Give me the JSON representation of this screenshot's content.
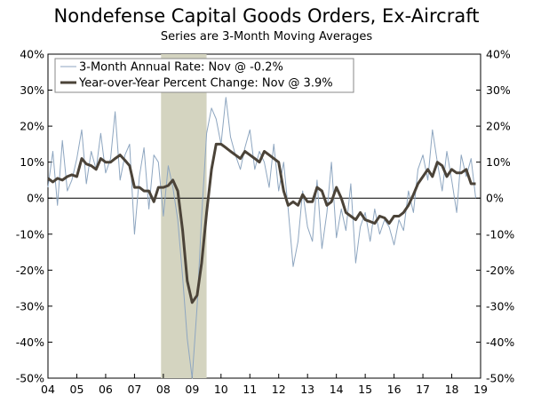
{
  "chart_data": {
    "type": "line",
    "title": "Nondefense Capital Goods Orders, Ex-Aircraft",
    "subtitle": "Series are 3-Month Moving Averages",
    "x_ticks": [
      "04",
      "05",
      "06",
      "07",
      "08",
      "09",
      "10",
      "11",
      "12",
      "13",
      "14",
      "15",
      "16",
      "17",
      "18",
      "19"
    ],
    "xlim": [
      2004.0,
      2019.0
    ],
    "ylim": [
      -50,
      40
    ],
    "y_ticks": [
      "-50%",
      "-40%",
      "-30%",
      "-20%",
      "-10%",
      "0%",
      "10%",
      "20%",
      "30%",
      "40%"
    ],
    "y_tick_values": [
      -50,
      -40,
      -30,
      -20,
      -10,
      0,
      10,
      20,
      30,
      40
    ],
    "right_axis": true,
    "zero_line": true,
    "recession_shading": [
      2007.92,
      2009.5
    ],
    "legend_placement": "top-left",
    "series": [
      {
        "name": "3-Month Annual Rate: Nov @ -0.2%",
        "style": "thin",
        "color": "#8ea6c0",
        "x": [
          2004.0,
          2004.17,
          2004.33,
          2004.5,
          2004.67,
          2004.83,
          2005.0,
          2005.17,
          2005.33,
          2005.5,
          2005.67,
          2005.83,
          2006.0,
          2006.17,
          2006.33,
          2006.5,
          2006.67,
          2006.83,
          2007.0,
          2007.17,
          2007.33,
          2007.5,
          2007.67,
          2007.83,
          2008.0,
          2008.17,
          2008.33,
          2008.5,
          2008.67,
          2008.83,
          2009.0,
          2009.17,
          2009.33,
          2009.5,
          2009.67,
          2009.83,
          2010.0,
          2010.17,
          2010.33,
          2010.5,
          2010.67,
          2010.83,
          2011.0,
          2011.17,
          2011.33,
          2011.5,
          2011.67,
          2011.83,
          2012.0,
          2012.17,
          2012.33,
          2012.5,
          2012.67,
          2012.83,
          2013.0,
          2013.17,
          2013.33,
          2013.5,
          2013.67,
          2013.83,
          2014.0,
          2014.17,
          2014.33,
          2014.5,
          2014.67,
          2014.83,
          2015.0,
          2015.17,
          2015.33,
          2015.5,
          2015.67,
          2015.83,
          2016.0,
          2016.17,
          2016.33,
          2016.5,
          2016.67,
          2016.83,
          2017.0,
          2017.17,
          2017.33,
          2017.5,
          2017.67,
          2017.83,
          2018.0,
          2018.17,
          2018.33,
          2018.5,
          2018.67,
          2018.83
        ],
        "values": [
          3,
          13,
          -2,
          16,
          2,
          5,
          11,
          19,
          4,
          13,
          8,
          18,
          7,
          11,
          24,
          5,
          12,
          15,
          -10,
          6,
          14,
          -3,
          12,
          10,
          -5,
          9,
          3,
          -6,
          -22,
          -39,
          -50,
          -30,
          -5,
          18,
          25,
          22,
          15,
          28,
          17,
          12,
          8,
          14,
          19,
          8,
          13,
          10,
          3,
          15,
          2,
          10,
          -3,
          -19,
          -12,
          2,
          -8,
          -12,
          5,
          -14,
          -4,
          10,
          -11,
          -3,
          -9,
          4,
          -18,
          -8,
          -4,
          -12,
          -3,
          -10,
          -6,
          -8,
          -13,
          -6,
          -9,
          2,
          -4,
          8,
          12,
          5,
          19,
          10,
          2,
          13,
          5,
          -4,
          12,
          6,
          11,
          0
        ]
      },
      {
        "name": "Year-over-Year Percent Change: Nov @ 3.9%",
        "style": "thick",
        "color": "#4b4338",
        "x": [
          2004.0,
          2004.17,
          2004.33,
          2004.5,
          2004.67,
          2004.83,
          2005.0,
          2005.17,
          2005.33,
          2005.5,
          2005.67,
          2005.83,
          2006.0,
          2006.17,
          2006.33,
          2006.5,
          2006.67,
          2006.83,
          2007.0,
          2007.17,
          2007.33,
          2007.5,
          2007.67,
          2007.83,
          2008.0,
          2008.17,
          2008.33,
          2008.5,
          2008.67,
          2008.83,
          2009.0,
          2009.17,
          2009.33,
          2009.5,
          2009.67,
          2009.83,
          2010.0,
          2010.17,
          2010.33,
          2010.5,
          2010.67,
          2010.83,
          2011.0,
          2011.17,
          2011.33,
          2011.5,
          2011.67,
          2011.83,
          2012.0,
          2012.17,
          2012.33,
          2012.5,
          2012.67,
          2012.83,
          2013.0,
          2013.17,
          2013.33,
          2013.5,
          2013.67,
          2013.83,
          2014.0,
          2014.17,
          2014.33,
          2014.5,
          2014.67,
          2014.83,
          2015.0,
          2015.17,
          2015.33,
          2015.5,
          2015.67,
          2015.83,
          2016.0,
          2016.17,
          2016.33,
          2016.5,
          2016.67,
          2016.83,
          2017.0,
          2017.17,
          2017.33,
          2017.5,
          2017.67,
          2017.83,
          2018.0,
          2018.17,
          2018.33,
          2018.5,
          2018.67,
          2018.83
        ],
        "values": [
          5.5,
          4.5,
          5.5,
          5,
          6,
          6.5,
          6,
          11,
          9.5,
          9,
          8,
          11,
          10,
          10,
          11,
          12,
          10.5,
          9,
          3,
          3,
          2,
          2,
          -1,
          3,
          3,
          3.5,
          5,
          2,
          -9,
          -23,
          -29,
          -27,
          -18,
          -4,
          8,
          15,
          15,
          14,
          13,
          12,
          11,
          13,
          12,
          11,
          10,
          13,
          12,
          11,
          10,
          2,
          -2,
          -1,
          -2,
          1,
          -1,
          -1,
          3,
          2,
          -2,
          -1,
          3,
          0,
          -4,
          -5,
          -6,
          -4,
          -6,
          -6.5,
          -7,
          -5,
          -5.5,
          -7,
          -5,
          -5,
          -4,
          -2,
          1,
          4,
          6,
          8,
          6,
          10,
          9,
          6,
          8,
          7,
          7,
          8,
          4,
          4
        ]
      }
    ]
  }
}
